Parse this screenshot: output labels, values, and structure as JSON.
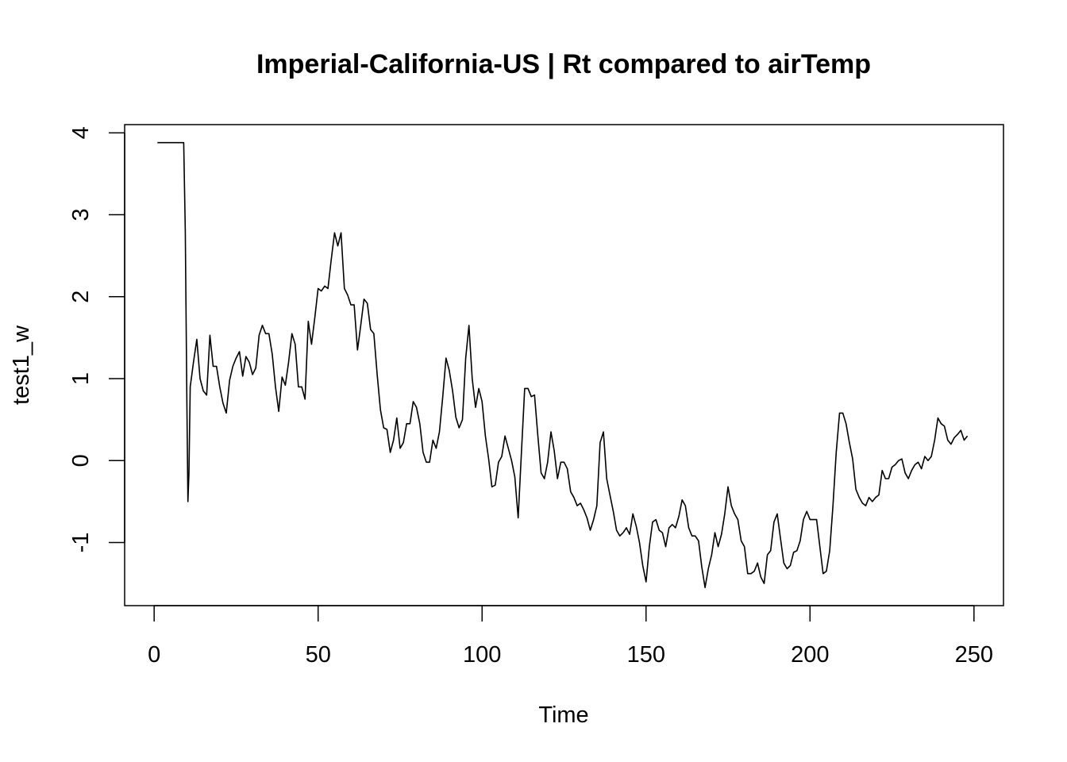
{
  "chart_data": {
    "type": "line",
    "title": "Imperial-California-US | Rt compared to airTemp",
    "xlabel": "Time",
    "ylabel": "test1_w",
    "xlim": [
      -9,
      259
    ],
    "ylim": [
      -1.77,
      4.1
    ],
    "xticks": [
      0,
      50,
      100,
      150,
      200,
      250
    ],
    "yticks": [
      -1,
      0,
      1,
      2,
      3,
      4
    ],
    "xtick_labels": [
      "0",
      "50",
      "100",
      "150",
      "200",
      "250"
    ],
    "ytick_labels": [
      "-1",
      "0",
      "1",
      "2",
      "3",
      "4"
    ],
    "grid": false,
    "legend": "none",
    "line_color": "#000000",
    "series": [
      {
        "x": [
          1,
          2,
          3,
          4,
          5,
          6,
          7,
          8,
          9,
          9.5,
          10,
          10.3,
          10.6,
          11,
          12,
          13,
          14,
          15,
          16,
          17,
          18,
          19,
          20,
          21,
          22,
          23,
          24,
          25,
          26,
          27,
          28,
          29,
          30,
          31,
          32,
          33,
          34,
          35,
          36,
          37,
          38,
          39,
          40,
          41,
          42,
          43,
          44,
          45,
          46,
          47,
          48,
          49,
          50,
          51,
          52,
          53,
          54,
          55,
          56,
          57,
          58,
          59,
          60,
          61,
          62,
          63,
          64,
          65,
          66,
          67,
          68,
          69,
          70,
          71,
          72,
          73,
          74,
          75,
          76,
          77,
          78,
          79,
          80,
          81,
          82,
          83,
          84,
          85,
          86,
          87,
          88,
          89,
          90,
          91,
          92,
          93,
          94,
          95,
          96,
          97,
          98,
          99,
          100,
          101,
          102,
          103,
          104,
          105,
          106,
          107,
          108,
          109,
          110,
          111,
          112,
          113,
          114,
          115,
          116,
          117,
          118,
          119,
          120,
          121,
          122,
          123,
          124,
          125,
          126,
          127,
          128,
          129,
          130,
          131,
          132,
          133,
          134,
          135,
          136,
          137,
          138,
          139,
          140,
          141,
          142,
          143,
          144,
          145,
          146,
          147,
          148,
          149,
          150,
          151,
          152,
          153,
          154,
          155,
          156,
          157,
          158,
          159,
          160,
          161,
          162,
          163,
          164,
          165,
          166,
          167,
          168,
          169,
          170,
          171,
          172,
          173,
          174,
          175,
          176,
          177,
          178,
          179,
          180,
          181,
          182,
          183,
          184,
          185,
          186,
          187,
          188,
          189,
          190,
          191,
          192,
          193,
          194,
          195,
          196,
          197,
          198,
          199,
          200,
          201,
          202,
          203,
          204,
          205,
          206,
          207,
          208,
          209,
          210,
          211,
          212,
          213,
          214,
          215,
          216,
          217,
          218,
          219,
          220,
          221,
          222,
          223,
          224,
          225,
          226,
          227,
          228,
          229,
          230,
          231,
          232,
          233,
          234,
          235,
          236,
          237,
          238,
          239,
          240,
          241,
          242,
          243,
          244,
          245,
          246,
          247,
          248
        ],
        "values": [
          3.88,
          3.88,
          3.88,
          3.88,
          3.88,
          3.88,
          3.88,
          3.88,
          3.88,
          2.8,
          0.6,
          -0.5,
          -0.15,
          0.9,
          1.2,
          1.48,
          1.0,
          0.85,
          0.8,
          1.53,
          1.15,
          1.15,
          0.9,
          0.7,
          0.58,
          0.98,
          1.15,
          1.25,
          1.33,
          1.03,
          1.27,
          1.2,
          1.05,
          1.13,
          1.53,
          1.65,
          1.55,
          1.55,
          1.3,
          0.9,
          0.6,
          1.02,
          0.92,
          1.2,
          1.55,
          1.42,
          0.9,
          0.9,
          0.75,
          1.7,
          1.42,
          1.75,
          2.1,
          2.07,
          2.13,
          2.1,
          2.45,
          2.78,
          2.62,
          2.78,
          2.1,
          2.02,
          1.9,
          1.9,
          1.35,
          1.65,
          1.97,
          1.92,
          1.6,
          1.55,
          1.05,
          0.62,
          0.4,
          0.38,
          0.1,
          0.25,
          0.52,
          0.15,
          0.22,
          0.45,
          0.45,
          0.72,
          0.65,
          0.45,
          0.1,
          -0.02,
          -0.02,
          0.25,
          0.15,
          0.35,
          0.78,
          1.25,
          1.1,
          0.85,
          0.53,
          0.4,
          0.5,
          1.25,
          1.65,
          1.0,
          0.65,
          0.88,
          0.72,
          0.3,
          0.02,
          -0.32,
          -0.3,
          -0.02,
          0.05,
          0.3,
          0.15,
          0.0,
          -0.2,
          -0.7,
          0.1,
          0.88,
          0.88,
          0.78,
          0.8,
          0.3,
          -0.15,
          -0.22,
          -0.02,
          0.35,
          0.12,
          -0.22,
          -0.02,
          -0.02,
          -0.1,
          -0.38,
          -0.45,
          -0.55,
          -0.52,
          -0.6,
          -0.7,
          -0.85,
          -0.72,
          -0.55,
          0.22,
          0.35,
          -0.22,
          -0.42,
          -0.62,
          -0.85,
          -0.92,
          -0.88,
          -0.82,
          -0.9,
          -0.65,
          -0.8,
          -1.0,
          -1.28,
          -1.48,
          -1.05,
          -0.75,
          -0.72,
          -0.85,
          -0.88,
          -1.05,
          -0.82,
          -0.78,
          -0.82,
          -0.68,
          -0.48,
          -0.55,
          -0.82,
          -0.92,
          -0.92,
          -0.98,
          -1.3,
          -1.55,
          -1.32,
          -1.15,
          -0.88,
          -1.05,
          -0.9,
          -0.65,
          -0.32,
          -0.55,
          -0.65,
          -0.72,
          -0.98,
          -1.05,
          -1.38,
          -1.38,
          -1.35,
          -1.25,
          -1.42,
          -1.5,
          -1.15,
          -1.1,
          -0.75,
          -0.65,
          -0.95,
          -1.25,
          -1.32,
          -1.28,
          -1.12,
          -1.1,
          -0.98,
          -0.72,
          -0.62,
          -0.72,
          -0.72,
          -0.72,
          -1.05,
          -1.38,
          -1.35,
          -1.1,
          -0.55,
          0.1,
          0.58,
          0.58,
          0.45,
          0.22,
          0.02,
          -0.35,
          -0.45,
          -0.52,
          -0.55,
          -0.45,
          -0.5,
          -0.45,
          -0.42,
          -0.12,
          -0.22,
          -0.22,
          -0.08,
          -0.05,
          0.0,
          0.02,
          -0.15,
          -0.22,
          -0.12,
          -0.05,
          -0.02,
          -0.1,
          0.05,
          0.0,
          0.05,
          0.25,
          0.52,
          0.45,
          0.42,
          0.25,
          0.2,
          0.28,
          0.32,
          0.37,
          0.25,
          0.3
        ]
      }
    ]
  }
}
